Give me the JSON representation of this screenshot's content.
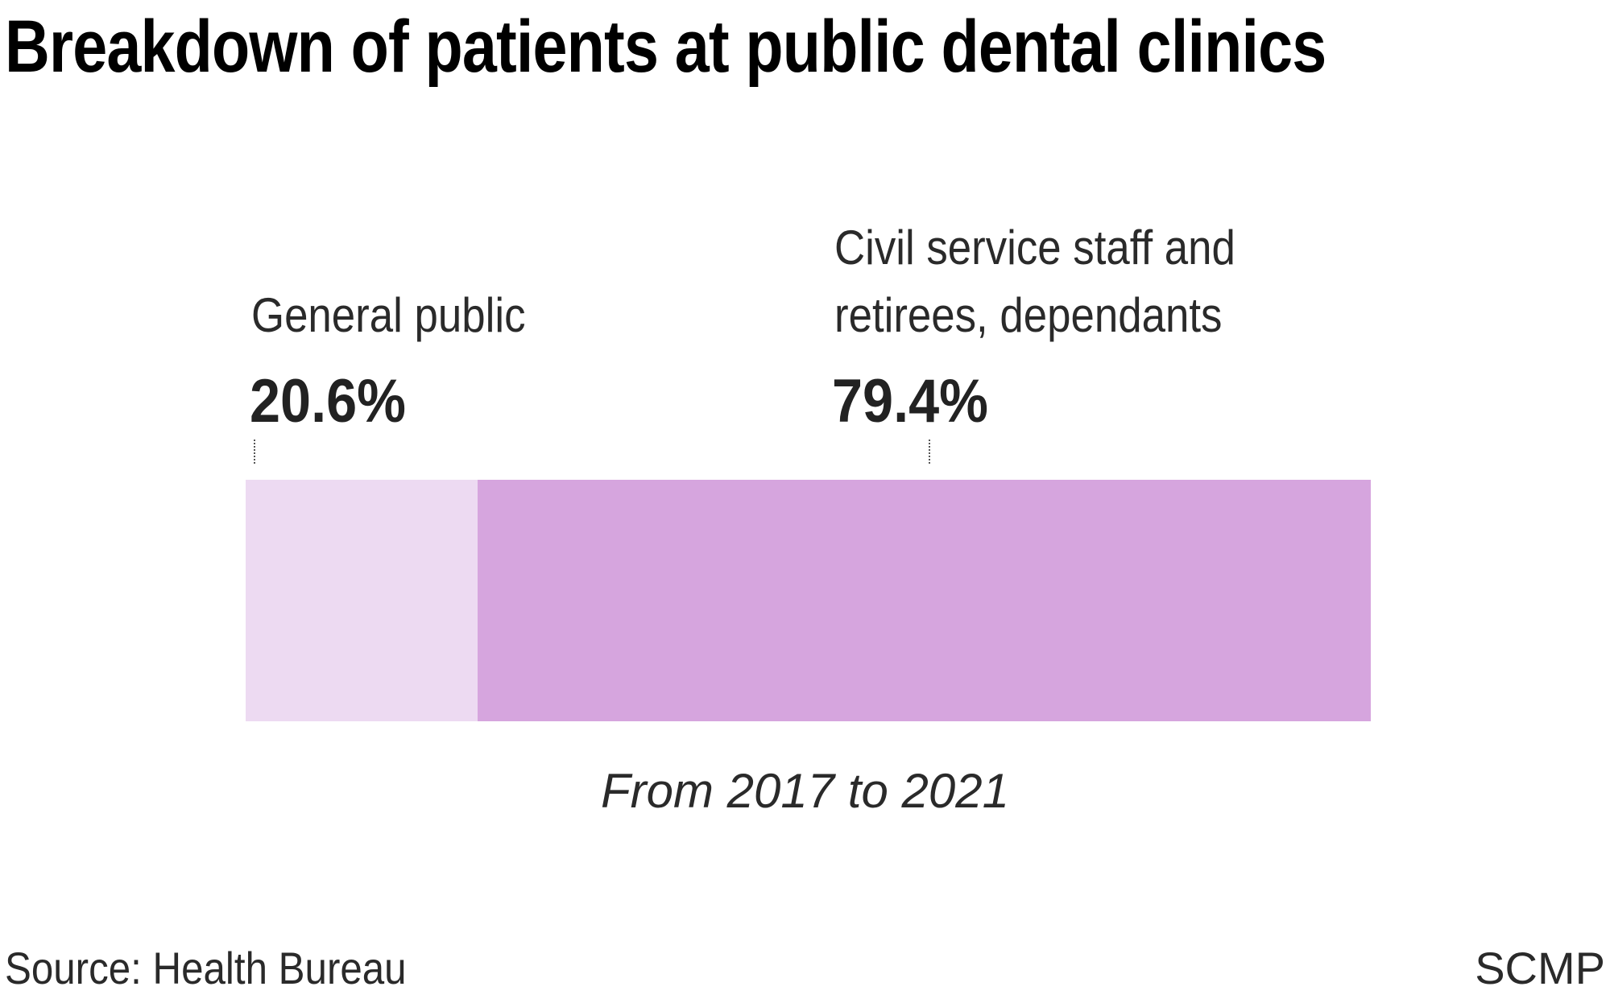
{
  "chart_data": {
    "type": "bar",
    "subtype": "stacked-100-percent",
    "title": "Breakdown of patients at public dental clinics",
    "categories": [
      "From 2017 to 2021"
    ],
    "series": [
      {
        "name": "General public",
        "value": 20.6,
        "label": "20.6%",
        "color": "#eddaf2"
      },
      {
        "name": "Civil service staff and retirees, dependants",
        "name_lines": [
          "Civil service staff and",
          "retirees, dependants"
        ],
        "value": 79.4,
        "label": "79.4%",
        "color": "#d6a5de"
      }
    ],
    "xlim": [
      0,
      100
    ],
    "grid": false,
    "source": "Source: Health Bureau",
    "credit": "SCMP"
  }
}
